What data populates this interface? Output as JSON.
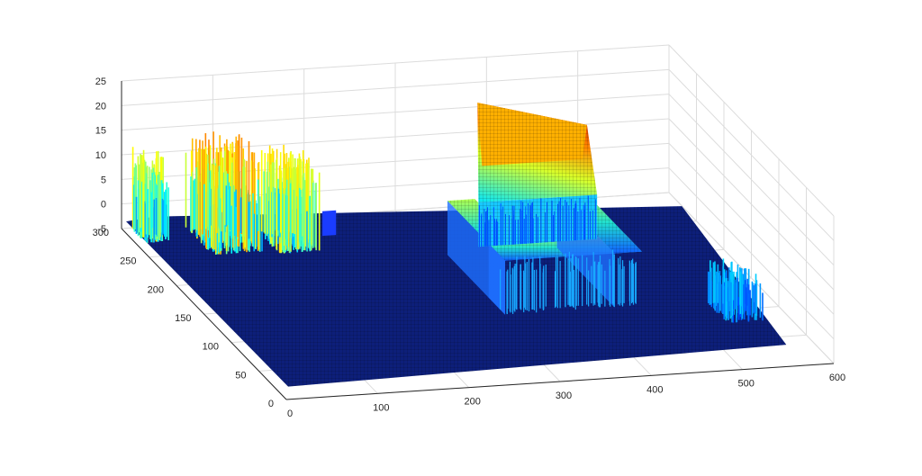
{
  "chart_data": {
    "type": "surface",
    "title": "",
    "xlabel": "",
    "ylabel": "",
    "zlabel": "",
    "xlim": [
      0,
      600
    ],
    "ylim": [
      0,
      300
    ],
    "zlim": [
      -5,
      25
    ],
    "x_ticks": [
      "0",
      "100",
      "200",
      "300",
      "400",
      "500",
      "600"
    ],
    "y_ticks": [
      "0",
      "50",
      "100",
      "150",
      "200",
      "250",
      "300"
    ],
    "z_ticks": [
      "-5",
      "0",
      "5",
      "10",
      "15",
      "20",
      "25"
    ],
    "grid": true,
    "colormap": "jet",
    "colormap_colors": [
      "#00008f",
      "#0000ff",
      "#00ffff",
      "#ffff00",
      "#ff0000",
      "#800000"
    ],
    "base_color": "#0d1f7a",
    "features": [
      {
        "name": "tree-cluster-1",
        "kind": "vegetation",
        "x": 15,
        "y": 270,
        "height": 14
      },
      {
        "name": "tree-cluster-2",
        "kind": "vegetation",
        "x": 85,
        "y": 255,
        "height": 17
      },
      {
        "name": "tree-cluster-3",
        "kind": "vegetation",
        "x": 150,
        "y": 245,
        "height": 15
      },
      {
        "name": "building-ridge-roof",
        "kind": "building",
        "x": 390,
        "y": 200,
        "height": 22
      },
      {
        "name": "courtyard-wing",
        "kind": "building",
        "x": 350,
        "y": 150,
        "height": 8
      },
      {
        "name": "right-edge-vegetation",
        "kind": "vegetation",
        "x": 540,
        "y": 80,
        "height": 6
      }
    ]
  }
}
